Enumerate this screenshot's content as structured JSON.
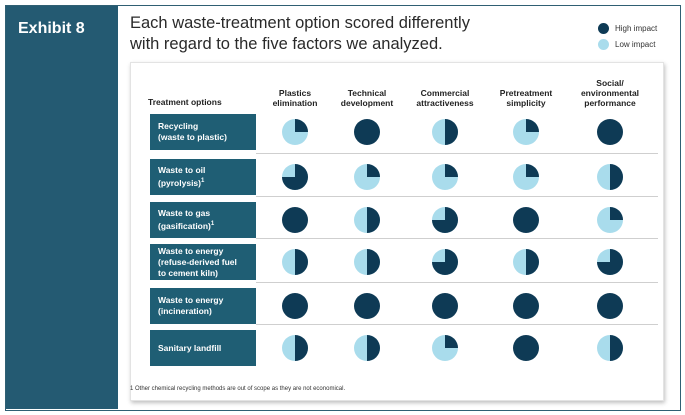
{
  "exhibit_label": "Exhibit 8",
  "heading_line1": "Each waste-treatment option scored differently",
  "heading_line2": "with regard to the five factors we analyzed.",
  "legend": {
    "high": "High impact",
    "low": "Low impact",
    "high_color": "#0e3a55",
    "low_color": "#a9dcec"
  },
  "row_header": "Treatment options",
  "columns": [
    [
      "Plastics",
      "elimination"
    ],
    [
      "Technical",
      "development"
    ],
    [
      "Commercial",
      "attractiveness"
    ],
    [
      "Pretreatment",
      "simplicity"
    ],
    [
      "Social/",
      "environmental",
      "performance"
    ]
  ],
  "rows": [
    {
      "lines": [
        "Recycling",
        "(waste to plastic)"
      ],
      "sup": [
        "",
        ""
      ],
      "scores": [
        0.25,
        1.0,
        0.5,
        0.25,
        1.0
      ]
    },
    {
      "lines": [
        "Waste to oil",
        "(pyrolysis)"
      ],
      "sup": [
        "",
        "1"
      ],
      "scores": [
        0.75,
        0.25,
        0.25,
        0.25,
        0.5
      ]
    },
    {
      "lines": [
        "Waste to gas",
        "(gasification)"
      ],
      "sup": [
        "",
        "1"
      ],
      "scores": [
        1.0,
        0.5,
        0.75,
        1.0,
        0.25
      ]
    },
    {
      "lines": [
        "Waste to energy",
        "(refuse-derived fuel",
        "to cement kiln)"
      ],
      "sup": [
        "",
        "",
        ""
      ],
      "scores": [
        0.5,
        0.5,
        0.75,
        0.5,
        0.75
      ]
    },
    {
      "lines": [
        "Waste to energy",
        "(incineration)"
      ],
      "sup": [
        "",
        ""
      ],
      "scores": [
        1.0,
        1.0,
        1.0,
        1.0,
        1.0
      ]
    },
    {
      "lines": [
        "Sanitary landfill"
      ],
      "sup": [
        ""
      ],
      "scores": [
        0.5,
        0.5,
        0.25,
        1.0,
        0.5
      ]
    }
  ],
  "footnote": "1 Other chemical recycling methods are out of scope as they are not economical."
}
